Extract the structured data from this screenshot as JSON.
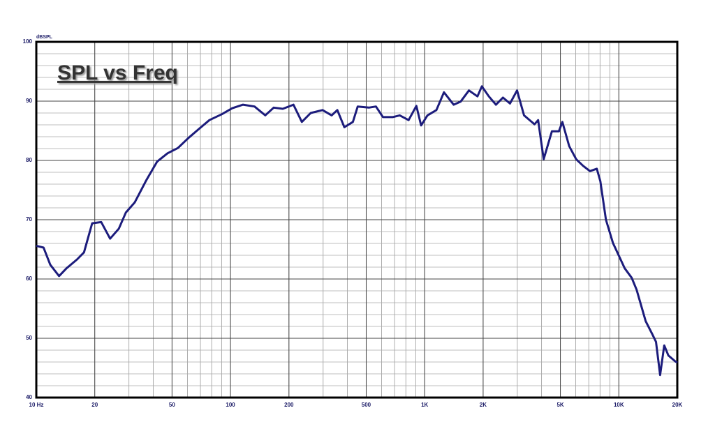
{
  "chart_data": {
    "type": "line",
    "title": "SPL vs Freq",
    "y_label": "dBSPL",
    "x_scale": "log",
    "grid": true,
    "xlim": [
      10,
      20000
    ],
    "ylim": [
      40,
      100
    ],
    "xticks": [
      {
        "value": 10,
        "label": "10 Hz"
      },
      20,
      50,
      100,
      200,
      500,
      {
        "value": 1000,
        "label": "1K"
      },
      {
        "value": 2000,
        "label": "2K"
      },
      {
        "value": 5000,
        "label": "5K"
      },
      {
        "value": 10000,
        "label": "10K"
      },
      {
        "value": 20000,
        "label": "20K"
      }
    ],
    "yticks": [
      40,
      50,
      60,
      70,
      80,
      90,
      100
    ],
    "series": [
      {
        "color": "#1c1c7c",
        "x": [
          10,
          10.9,
          11.8,
          13.1,
          14.3,
          16.2,
          17.6,
          19.4,
          21.6,
          24,
          26.6,
          28.9,
          32.1,
          36.9,
          41.9,
          47.4,
          53.6,
          60.8,
          68.8,
          77.9,
          90.3,
          102,
          116,
          133,
          151,
          167,
          186,
          211,
          233,
          259,
          298,
          332,
          355,
          386,
          427,
          452,
          516,
          561,
          610,
          684,
          744,
          827,
          906,
          959,
          1034,
          1149,
          1257,
          1410,
          1530,
          1690,
          1870,
          1970,
          2140,
          2330,
          2530,
          2750,
          2990,
          3250,
          3680,
          3840,
          4100,
          4520,
          4910,
          5120,
          5550,
          6030,
          6540,
          7100,
          7700,
          8030,
          8580,
          9320,
          10720,
          11650,
          12340,
          13740,
          14920,
          15540,
          16310,
          17130,
          17990,
          19530,
          20000
        ],
        "values": [
          65.6,
          65.3,
          62.4,
          60.5,
          61.8,
          63.3,
          64.5,
          69.4,
          69.6,
          66.8,
          68.5,
          71.2,
          72.9,
          76.7,
          79.8,
          81.2,
          82.1,
          83.8,
          85.3,
          86.8,
          87.8,
          88.8,
          89.4,
          89.1,
          87.6,
          88.9,
          88.7,
          89.4,
          86.5,
          88,
          88.5,
          87.6,
          88.5,
          85.6,
          86.5,
          89.1,
          88.9,
          89.1,
          87.3,
          87.3,
          87.6,
          86.8,
          89.2,
          85.9,
          87.6,
          88.5,
          91.5,
          89.4,
          89.9,
          91.8,
          90.8,
          92.5,
          90.8,
          89.4,
          90.6,
          89.6,
          91.8,
          87.6,
          86.1,
          86.8,
          80.2,
          84.9,
          84.9,
          86.5,
          82.4,
          80.2,
          79.1,
          78.2,
          78.6,
          76.5,
          70,
          66.1,
          61.8,
          60.2,
          58.2,
          52.9,
          50.6,
          49.4,
          43.8,
          48.8,
          47.1,
          46.1,
          45.9
        ]
      }
    ]
  }
}
